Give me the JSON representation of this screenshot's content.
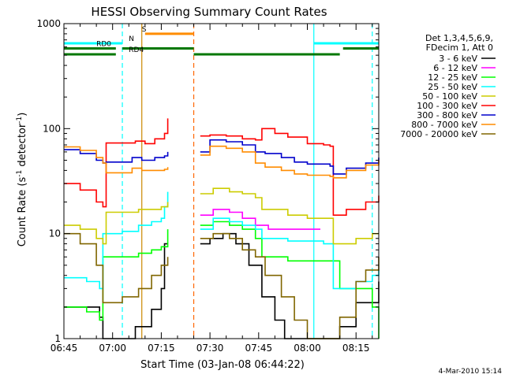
{
  "footer_date": "4-Mar-2010 15:14",
  "chart_data": {
    "type": "line",
    "title": "HESSI Observing Summary Count Rates",
    "xlabel": "Start Time (03-Jan-08 06:44:22)",
    "ylabel": "Count Rate (s",
    "ylabel_sup": "-1",
    "ylabel_mid": " detector",
    "ylabel_sup2": "-1",
    "ylabel_end": ")",
    "y_scale": "log",
    "ylim": [
      1,
      1000
    ],
    "xlim": [
      "06:45",
      "08:22"
    ],
    "y_tick_labels": [
      {
        "value": 1,
        "label": "1"
      },
      {
        "value": 10,
        "label": "10"
      },
      {
        "value": 100,
        "label": "100"
      },
      {
        "value": 1000,
        "label": "1000"
      }
    ],
    "x_tick_labels": [
      {
        "t": "06:45",
        "label": "06:45"
      },
      {
        "t": "07:00",
        "label": "07:00"
      },
      {
        "t": "07:15",
        "label": "07:15"
      },
      {
        "t": "07:30",
        "label": "07:30"
      },
      {
        "t": "07:45",
        "label": "07:45"
      },
      {
        "t": "08:00",
        "label": "08:00"
      },
      {
        "t": "08:15",
        "label": "08:15"
      }
    ],
    "legend_position": "right",
    "legend_header": [
      "Det 1,3,4,5,6,9,",
      "FDecim 1, Att 0"
    ],
    "segments": [
      {
        "start": "06:45",
        "end": "07:17"
      },
      {
        "start": "07:27",
        "end": "08:22"
      }
    ],
    "series": [
      {
        "name": "3 - 6 keV",
        "color": "#000000",
        "points": [
          [
            "06:45",
            2
          ],
          [
            "06:52",
            2
          ],
          [
            "06:56",
            1.6
          ],
          [
            "06:57",
            1
          ],
          [
            "07:03",
            1
          ],
          [
            "07:07",
            1.3
          ],
          [
            "07:12",
            1.9
          ],
          [
            "07:15",
            3
          ],
          [
            "07:16",
            8
          ],
          [
            "07:17",
            8
          ],
          [
            "07:27",
            8
          ],
          [
            "07:30",
            9
          ],
          [
            "07:34",
            10
          ],
          [
            "07:38",
            8
          ],
          [
            "07:42",
            5
          ],
          [
            "07:46",
            2.5
          ],
          [
            "07:50",
            1.5
          ],
          [
            "07:53",
            1
          ],
          [
            "08:00",
            1
          ],
          [
            "08:06",
            1
          ],
          [
            "08:10",
            1.3
          ],
          [
            "08:15",
            2.2
          ],
          [
            "08:22",
            3.5
          ]
        ]
      },
      {
        "name": "6 - 12 keV",
        "color": "#ff00ff",
        "points": [
          [
            "07:27",
            15
          ],
          [
            "07:31",
            17
          ],
          [
            "07:36",
            16
          ],
          [
            "07:40",
            14
          ],
          [
            "07:44",
            12
          ],
          [
            "07:48",
            11
          ],
          [
            "07:54",
            11
          ],
          [
            "08:00",
            11
          ],
          [
            "08:04",
            11
          ]
        ]
      },
      {
        "name": "12 - 25 keV",
        "color": "#00ff00",
        "points": [
          [
            "06:45",
            2
          ],
          [
            "06:52",
            1.8
          ],
          [
            "06:56",
            1.5
          ],
          [
            "06:57",
            6
          ],
          [
            "07:03",
            6
          ],
          [
            "07:08",
            6.5
          ],
          [
            "07:12",
            7
          ],
          [
            "07:15",
            7.5
          ],
          [
            "07:17",
            11
          ],
          [
            "07:27",
            12
          ],
          [
            "07:31",
            13
          ],
          [
            "07:36",
            12
          ],
          [
            "07:40",
            11
          ],
          [
            "07:44",
            9
          ],
          [
            "07:46",
            6
          ],
          [
            "07:54",
            5.5
          ],
          [
            "08:00",
            5.5
          ],
          [
            "08:05",
            5.5
          ],
          [
            "08:07",
            5.5
          ],
          [
            "08:10",
            3
          ],
          [
            "08:15",
            3
          ],
          [
            "08:20",
            2
          ],
          [
            "08:22",
            1
          ]
        ]
      },
      {
        "name": "25 - 50 keV",
        "color": "#00ffff",
        "points": [
          [
            "06:45",
            3.8
          ],
          [
            "06:52",
            3.5
          ],
          [
            "06:56",
            3
          ],
          [
            "06:57",
            10
          ],
          [
            "07:03",
            10.5
          ],
          [
            "07:08",
            12
          ],
          [
            "07:12",
            13
          ],
          [
            "07:15",
            14
          ],
          [
            "07:16",
            18
          ],
          [
            "07:17",
            25
          ],
          [
            "07:27",
            11
          ],
          [
            "07:31",
            14
          ],
          [
            "07:36",
            13
          ],
          [
            "07:40",
            12
          ],
          [
            "07:44",
            11
          ],
          [
            "07:46",
            9
          ],
          [
            "07:54",
            8.5
          ],
          [
            "08:00",
            8.5
          ],
          [
            "08:05",
            8
          ],
          [
            "08:07",
            8
          ],
          [
            "08:08",
            3
          ],
          [
            "08:15",
            3.5
          ],
          [
            "08:20",
            4
          ],
          [
            "08:22",
            4.5
          ]
        ]
      },
      {
        "name": "50 - 100 keV",
        "color": "#cccc00",
        "points": [
          [
            "06:45",
            12
          ],
          [
            "06:50",
            11
          ],
          [
            "06:55",
            9
          ],
          [
            "06:57",
            8
          ],
          [
            "06:58",
            16
          ],
          [
            "07:03",
            16
          ],
          [
            "07:08",
            17
          ],
          [
            "07:12",
            17
          ],
          [
            "07:15",
            18
          ],
          [
            "07:17",
            20
          ],
          [
            "07:27",
            24
          ],
          [
            "07:31",
            27
          ],
          [
            "07:36",
            25
          ],
          [
            "07:40",
            24
          ],
          [
            "07:44",
            22
          ],
          [
            "07:46",
            17
          ],
          [
            "07:54",
            15
          ],
          [
            "08:00",
            14
          ],
          [
            "08:05",
            14
          ],
          [
            "08:07",
            14
          ],
          [
            "08:08",
            8
          ],
          [
            "08:15",
            9
          ],
          [
            "08:20",
            10
          ],
          [
            "08:22",
            10
          ]
        ]
      },
      {
        "name": "100 - 300 keV",
        "color": "#ff0000",
        "points": [
          [
            "06:45",
            30
          ],
          [
            "06:50",
            26
          ],
          [
            "06:55",
            20
          ],
          [
            "06:57",
            18
          ],
          [
            "06:58",
            73
          ],
          [
            "07:03",
            73
          ],
          [
            "07:07",
            76
          ],
          [
            "07:10",
            72
          ],
          [
            "07:13",
            80
          ],
          [
            "07:16",
            90
          ],
          [
            "07:17",
            125
          ],
          [
            "07:27",
            85
          ],
          [
            "07:30",
            87
          ],
          [
            "07:35",
            85
          ],
          [
            "07:40",
            80
          ],
          [
            "07:44",
            78
          ],
          [
            "07:46",
            100
          ],
          [
            "07:50",
            90
          ],
          [
            "07:54",
            83
          ],
          [
            "08:00",
            72
          ],
          [
            "08:05",
            70
          ],
          [
            "08:07",
            68
          ],
          [
            "08:08",
            15
          ],
          [
            "08:12",
            17
          ],
          [
            "08:18",
            20
          ],
          [
            "08:22",
            23
          ]
        ]
      },
      {
        "name": "300 - 800 keV",
        "color": "#0000cc",
        "points": [
          [
            "06:45",
            63
          ],
          [
            "06:50",
            58
          ],
          [
            "06:55",
            50
          ],
          [
            "06:57",
            47
          ],
          [
            "06:58",
            48
          ],
          [
            "07:03",
            48
          ],
          [
            "07:06",
            53
          ],
          [
            "07:09",
            50
          ],
          [
            "07:13",
            53
          ],
          [
            "07:16",
            55
          ],
          [
            "07:17",
            60
          ],
          [
            "07:27",
            60
          ],
          [
            "07:30",
            78
          ],
          [
            "07:35",
            75
          ],
          [
            "07:40",
            70
          ],
          [
            "07:44",
            60
          ],
          [
            "07:47",
            58
          ],
          [
            "07:52",
            53
          ],
          [
            "07:56",
            48
          ],
          [
            "08:00",
            46
          ],
          [
            "08:05",
            46
          ],
          [
            "08:07",
            44
          ],
          [
            "08:08",
            37
          ],
          [
            "08:12",
            42
          ],
          [
            "08:18",
            47
          ],
          [
            "08:22",
            53
          ]
        ]
      },
      {
        "name": "800 - 7000 keV",
        "color": "#ff8c00",
        "points": [
          [
            "06:45",
            67
          ],
          [
            "06:50",
            62
          ],
          [
            "06:55",
            53
          ],
          [
            "06:57",
            47
          ],
          [
            "06:58",
            38
          ],
          [
            "07:03",
            38
          ],
          [
            "07:06",
            42
          ],
          [
            "07:09",
            40
          ],
          [
            "07:13",
            40
          ],
          [
            "07:16",
            41
          ],
          [
            "07:17",
            43
          ],
          [
            "07:27",
            56
          ],
          [
            "07:30",
            68
          ],
          [
            "07:35",
            65
          ],
          [
            "07:40",
            60
          ],
          [
            "07:44",
            47
          ],
          [
            "07:47",
            43
          ],
          [
            "07:52",
            40
          ],
          [
            "07:56",
            37
          ],
          [
            "08:00",
            36
          ],
          [
            "08:05",
            36
          ],
          [
            "08:07",
            35
          ],
          [
            "08:08",
            34
          ],
          [
            "08:12",
            40
          ],
          [
            "08:18",
            45
          ],
          [
            "08:22",
            50
          ]
        ]
      },
      {
        "name": "7000 - 20000 keV",
        "color": "#806600",
        "points": [
          [
            "06:45",
            10
          ],
          [
            "06:50",
            8
          ],
          [
            "06:55",
            5
          ],
          [
            "06:57",
            2.2
          ],
          [
            "07:03",
            2.5
          ],
          [
            "07:08",
            3
          ],
          [
            "07:12",
            4
          ],
          [
            "07:15",
            5
          ],
          [
            "07:17",
            6
          ],
          [
            "07:27",
            9
          ],
          [
            "07:31",
            10
          ],
          [
            "07:36",
            9
          ],
          [
            "07:40",
            7
          ],
          [
            "07:44",
            6
          ],
          [
            "07:47",
            4
          ],
          [
            "07:52",
            2.5
          ],
          [
            "07:56",
            1.5
          ],
          [
            "08:00",
            1
          ],
          [
            "08:06",
            1
          ],
          [
            "08:10",
            1.6
          ],
          [
            "08:15",
            3.5
          ],
          [
            "08:18",
            4.5
          ],
          [
            "08:22",
            6
          ]
        ]
      }
    ],
    "vertical_markers": [
      {
        "t": "07:03",
        "color": "#00ffff",
        "style": "dashed"
      },
      {
        "t": "07:09",
        "color": "#cc8800",
        "style": "solid"
      },
      {
        "t": "07:25",
        "color": "#ff6600",
        "style": "dashed"
      },
      {
        "t": "08:02",
        "color": "#00ffff",
        "style": "solid"
      },
      {
        "t": "08:20",
        "color": "#00ffff",
        "style": "dashed"
      }
    ],
    "state_bars": [
      {
        "label": "S",
        "color": "#ff8c00",
        "level": 800,
        "spans": [
          [
            "07:10",
            "07:25"
          ]
        ],
        "label_at": "07:09"
      },
      {
        "label": "N",
        "color": "#00ffff",
        "level": 650,
        "spans": [
          [
            "06:45",
            "07:03"
          ],
          [
            "08:02",
            "08:22"
          ]
        ],
        "label_at": "07:05"
      },
      {
        "label": "RD0",
        "color": "#007700",
        "level": 580,
        "spans": [
          [
            "06:45",
            "07:01"
          ],
          [
            "07:03",
            "07:25"
          ],
          [
            "08:11",
            "08:22"
          ]
        ],
        "label_at": "06:55"
      },
      {
        "label": "RD4",
        "color": "#007700",
        "level": 510,
        "spans": [
          [
            "06:45",
            "07:01"
          ],
          [
            "07:25",
            "07:38"
          ],
          [
            "07:38",
            "08:10"
          ]
        ],
        "label_at": "07:05"
      }
    ]
  }
}
